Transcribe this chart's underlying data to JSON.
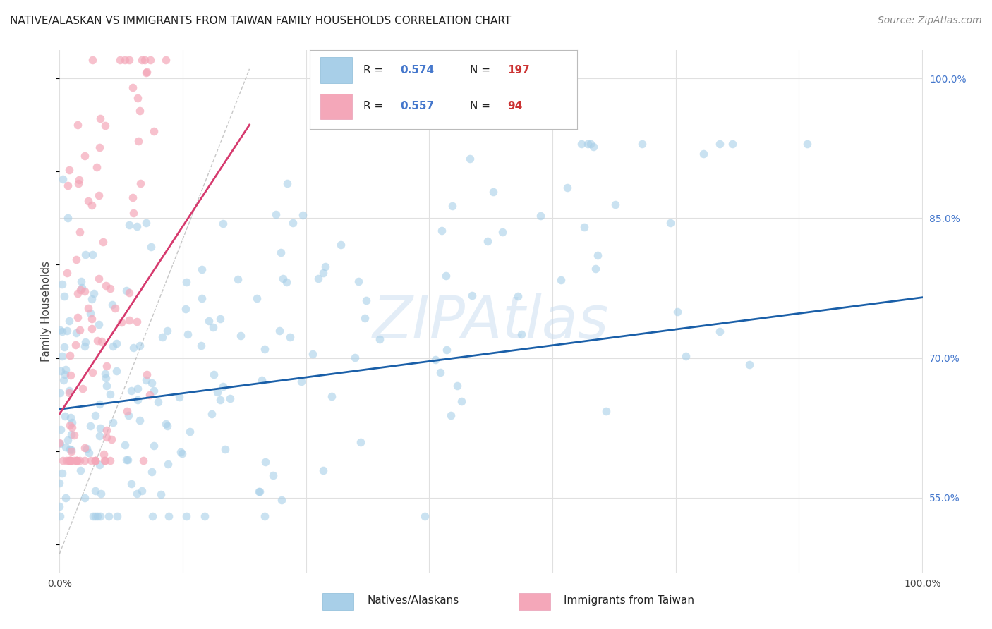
{
  "title": "NATIVE/ALASKAN VS IMMIGRANTS FROM TAIWAN FAMILY HOUSEHOLDS CORRELATION CHART",
  "source": "Source: ZipAtlas.com",
  "ylabel": "Family Households",
  "blue_R": 0.574,
  "blue_N": 197,
  "pink_R": 0.557,
  "pink_N": 94,
  "blue_color": "#a8cfe8",
  "pink_color": "#f4a7b9",
  "blue_line_color": "#1a5fa8",
  "pink_line_color": "#d63a6e",
  "right_ytick_vals": [
    55.0,
    70.0,
    85.0,
    100.0
  ],
  "xlim": [
    0.0,
    100.0
  ],
  "ylim": [
    47.0,
    103.0
  ],
  "legend_label_blue": "Natives/Alaskans",
  "legend_label_pink": "Immigrants from Taiwan",
  "blue_trend_x": [
    0.0,
    100.0
  ],
  "blue_trend_y": [
    64.5,
    76.5
  ],
  "pink_trend_x": [
    0.0,
    22.0
  ],
  "pink_trend_y": [
    64.0,
    95.0
  ],
  "ref_line_x": [
    0.0,
    22.0
  ],
  "ref_line_y": [
    49.0,
    101.0
  ],
  "background_color": "#ffffff",
  "grid_color": "#e0e0e0",
  "title_fontsize": 11,
  "ylabel_fontsize": 11,
  "tick_fontsize": 10,
  "source_fontsize": 10,
  "watermark_text": "ZIPAtlas",
  "watermark_color": "#c8ddf0",
  "watermark_alpha": 0.5,
  "watermark_fontsize": 60,
  "legend_R_color": "#4477cc",
  "legend_N_color": "#cc3333",
  "legend_text_color": "#222222",
  "right_tick_color": "#4477cc"
}
